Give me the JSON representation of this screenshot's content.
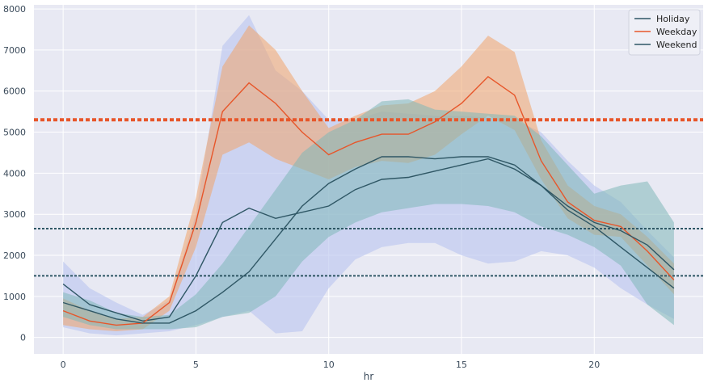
{
  "chart_data": {
    "type": "line",
    "title": "",
    "xlabel": "hr",
    "ylabel": "",
    "xlim": [
      -1.1,
      24.1
    ],
    "ylim": [
      -400,
      8100
    ],
    "x_ticks": [
      0,
      5,
      10,
      15,
      20
    ],
    "y_ticks": [
      0,
      1000,
      2000,
      3000,
      4000,
      5000,
      6000,
      7000,
      8000
    ],
    "grid": true,
    "legend_position": "top-right",
    "x": [
      0,
      1,
      2,
      3,
      4,
      5,
      6,
      7,
      8,
      9,
      10,
      11,
      12,
      13,
      14,
      15,
      16,
      17,
      18,
      19,
      20,
      21,
      22,
      23
    ],
    "series": [
      {
        "name": "Holiday",
        "color": "#2f5765",
        "values": [
          1300,
          800,
          600,
          400,
          500,
          1500,
          2800,
          3150,
          2900,
          3050,
          3200,
          3600,
          3850,
          3900,
          4050,
          4200,
          4350,
          4100,
          3700,
          3100,
          2700,
          2200,
          1700,
          1200
        ],
        "band_color": "#bdc7ef",
        "lower": [
          250,
          100,
          50,
          100,
          150,
          300,
          500,
          650,
          100,
          150,
          1200,
          1900,
          2200,
          2300,
          2300,
          2000,
          1800,
          1850,
          2100,
          2000,
          1700,
          1200,
          800,
          450
        ],
        "upper": [
          1850,
          1200,
          850,
          550,
          900,
          3000,
          7100,
          7850,
          6500,
          6000,
          5300,
          5300,
          5500,
          5450,
          5400,
          5400,
          5350,
          5300,
          5000,
          4300,
          3700,
          3300,
          2600,
          1950
        ]
      },
      {
        "name": "Weekday",
        "color": "#e7562a",
        "values": [
          650,
          400,
          300,
          350,
          850,
          2800,
          5500,
          6200,
          5700,
          5000,
          4450,
          4750,
          4950,
          4950,
          5250,
          5700,
          6350,
          5900,
          4300,
          3300,
          2850,
          2700,
          2100,
          1400
        ],
        "band_color": "#f0a469",
        "lower": [
          300,
          200,
          150,
          200,
          650,
          2200,
          4450,
          4750,
          4350,
          4100,
          3850,
          4150,
          4300,
          4250,
          4450,
          4950,
          5400,
          5050,
          3850,
          2900,
          2500,
          2450,
          1750,
          1050
        ],
        "upper": [
          950,
          650,
          450,
          500,
          1000,
          3400,
          6600,
          7600,
          7000,
          6000,
          5100,
          5400,
          5650,
          5700,
          6000,
          6600,
          7350,
          6950,
          4800,
          3700,
          3200,
          3000,
          2450,
          1800
        ]
      },
      {
        "name": "Weekend",
        "color": "#2f5765",
        "values": [
          850,
          650,
          450,
          350,
          350,
          650,
          1100,
          1600,
          2400,
          3200,
          3750,
          4100,
          4400,
          4400,
          4350,
          4400,
          4400,
          4200,
          3700,
          3200,
          2800,
          2600,
          2250,
          1650
        ],
        "band_color": "#7fb8b8",
        "lower": [
          500,
          300,
          200,
          200,
          200,
          250,
          500,
          600,
          1000,
          1850,
          2450,
          2800,
          3050,
          3150,
          3250,
          3250,
          3200,
          3050,
          2700,
          2500,
          2200,
          1750,
          800,
          300
        ],
        "upper": [
          1100,
          900,
          600,
          500,
          550,
          1050,
          1800,
          2700,
          3600,
          4500,
          5000,
          5300,
          5750,
          5800,
          5550,
          5500,
          5450,
          5400,
          4900,
          4200,
          3500,
          3700,
          3800,
          2800
        ]
      }
    ],
    "reference_lines": [
      {
        "y": 5300,
        "color": "#e7562a",
        "style": "dotted"
      },
      {
        "y": 2650,
        "color": "#2f5765",
        "style": "dotted"
      },
      {
        "y": 1500,
        "color": "#2f5765",
        "style": "dotted"
      }
    ],
    "plot_background": "#e8e9f3"
  }
}
